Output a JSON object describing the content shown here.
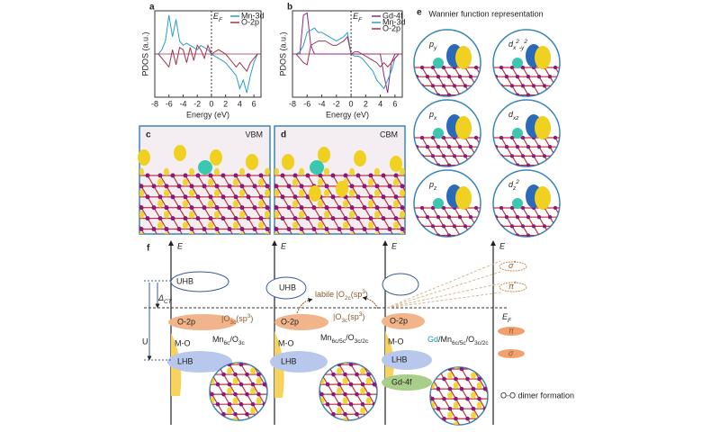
{
  "chart_data": [
    {
      "type": "line",
      "label": "a",
      "xlabel": "Energy (eV)",
      "ylabel": "PDOS (a.u.)",
      "ef_label": [
        "E",
        "F"
      ],
      "x": [
        -8,
        -7.5,
        -7,
        -6.5,
        -6,
        -5.5,
        -5,
        -4.5,
        -4,
        -3.5,
        -3,
        -2.5,
        -2,
        -1.5,
        -1,
        -0.5,
        0,
        0.5,
        1,
        1.5,
        2,
        2.5,
        3,
        3.5,
        4,
        4.5,
        5,
        5.5,
        6,
        6.5,
        7
      ],
      "xlim": [
        -8,
        7
      ],
      "xticks": [
        -8,
        -6,
        -4,
        -2,
        0,
        2,
        4,
        6
      ],
      "ylim": [
        -1,
        1
      ],
      "series": [
        {
          "name": "Mn-3d",
          "color": "#2a9ec8",
          "values": [
            0,
            0,
            0.1,
            0.3,
            0.9,
            0.4,
            0.8,
            0.3,
            0.2,
            0.25,
            0.2,
            0.15,
            0.1,
            0.2,
            0.15,
            0.1,
            0,
            -0.05,
            -0.1,
            -0.15,
            -0.2,
            -0.3,
            -0.4,
            -0.5,
            -0.8,
            -0.6,
            -0.9,
            -0.5,
            -0.2,
            0,
            0
          ]
        },
        {
          "name": "O-2p",
          "color": "#a0344a",
          "values": [
            0,
            0,
            -0.1,
            -0.2,
            -0.3,
            0.1,
            -0.25,
            0.15,
            0.1,
            -0.2,
            0.15,
            -0.15,
            0.2,
            0.1,
            -0.1,
            0.2,
            0,
            0.05,
            0.1,
            0.05,
            0,
            -0.1,
            -0.2,
            -0.3,
            -0.2,
            -0.3,
            -0.4,
            -0.2,
            -0.1,
            0,
            0
          ]
        }
      ]
    },
    {
      "type": "line",
      "label": "b",
      "xlabel": "Energy (eV)",
      "ylabel": "PDOS (a.u.)",
      "ef_label": [
        "E",
        "F"
      ],
      "x": [
        -8,
        -7.5,
        -7,
        -6.5,
        -6,
        -5.5,
        -5,
        -4.5,
        -4,
        -3.5,
        -3,
        -2.5,
        -2,
        -1.5,
        -1,
        -0.5,
        0,
        0.5,
        1,
        1.5,
        2,
        2.5,
        3,
        3.5,
        4,
        4.5,
        5,
        5.5,
        6,
        6.5,
        7
      ],
      "xlim": [
        -8,
        7
      ],
      "xticks": [
        -8,
        -6,
        -4,
        -2,
        0,
        2,
        4,
        6
      ],
      "ylim": [
        -1,
        1
      ],
      "series": [
        {
          "name": "Gd-4f",
          "color": "#8a2a8a",
          "values": [
            0,
            0,
            0,
            0.9,
            0.95,
            0.2,
            0,
            0,
            0,
            0,
            0,
            0,
            0,
            0,
            0,
            0,
            0,
            0,
            0,
            0,
            0,
            0,
            0,
            0,
            0,
            -0.5,
            -0.9,
            -0.2,
            0,
            0,
            0
          ]
        },
        {
          "name": "Mn-3d",
          "color": "#2a9ec8",
          "values": [
            0,
            0,
            0.05,
            0.2,
            0.5,
            0.55,
            0.6,
            0.5,
            0.5,
            0.45,
            0.4,
            0.35,
            0.3,
            0.35,
            0.4,
            0.5,
            0,
            -0.05,
            -0.05,
            -0.1,
            -0.2,
            -0.3,
            -0.4,
            -0.6,
            -0.7,
            -0.8,
            -0.6,
            -0.4,
            -0.1,
            0,
            0
          ]
        },
        {
          "name": "O-2p",
          "color": "#a0344a",
          "values": [
            0,
            0,
            -0.1,
            -0.2,
            -0.25,
            0.2,
            0.25,
            0.3,
            0.3,
            0.3,
            0.25,
            0.2,
            0.2,
            0.25,
            0.3,
            0.4,
            0,
            0.05,
            0.05,
            0,
            -0.05,
            -0.1,
            -0.15,
            -0.2,
            -0.3,
            -0.2,
            -0.3,
            -0.2,
            -0.1,
            0,
            0
          ]
        }
      ]
    }
  ],
  "panel_c": {
    "label": "c",
    "tag": "VBM"
  },
  "panel_d": {
    "label": "d",
    "tag": "CBM"
  },
  "panel_e": {
    "label": "e",
    "title": "Wannier function representation",
    "orbitals": [
      [
        "p",
        "y"
      ],
      [
        "d",
        "x",
        "2",
        "-y",
        "2"
      ],
      [
        "p",
        "x"
      ],
      [
        "d",
        "xz"
      ],
      [
        "p",
        "z"
      ],
      [
        "d",
        "z",
        "2"
      ]
    ]
  },
  "panel_f": {
    "label": "f",
    "energy_axis": "E",
    "uhb": "UHB",
    "o2p": "O-2p",
    "mo": "M-O",
    "lhb": "LHB",
    "gd4f": "Gd-4f",
    "delta": [
      "Δ",
      "CT"
    ],
    "u": "U",
    "ef": [
      "E",
      "F"
    ],
    "o3c": [
      "|O",
      "3c",
      "(sp",
      "3",
      ")"
    ],
    "labile": [
      "labile |O",
      "2c",
      "(sp",
      "3",
      ")"
    ],
    "sigma_star": [
      "σ",
      "*"
    ],
    "pi_star": [
      "π",
      "*"
    ],
    "pi": "π",
    "sigma": "σ",
    "dimer": "O-O dimer formation",
    "stage1": [
      "Mn",
      "6c",
      "/O",
      "3c"
    ],
    "stage2": [
      "Mn",
      "6c/5c",
      "/O",
      "3c/2c"
    ],
    "stage3": [
      "Gd",
      "/Mn",
      "6c/5c",
      "/O",
      "3c/2c"
    ]
  }
}
